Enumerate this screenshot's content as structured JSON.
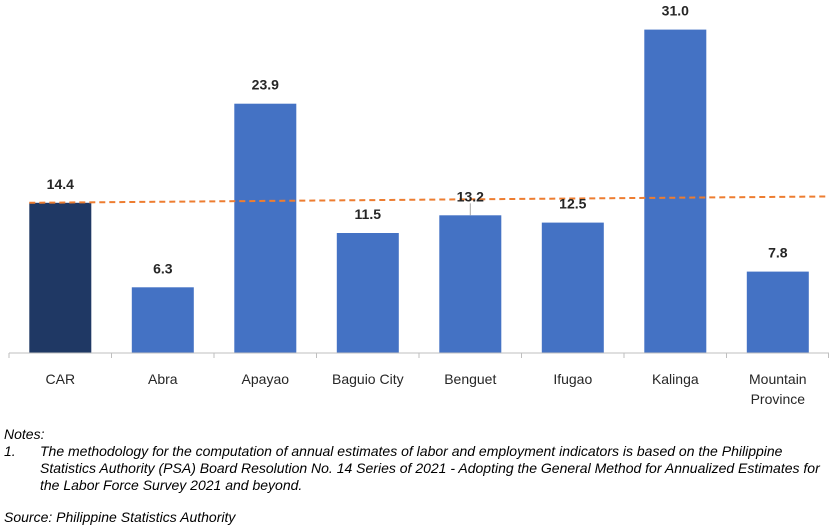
{
  "chart_data": {
    "type": "bar",
    "categories": [
      "CAR",
      "Abra",
      "Apayao",
      "Baguio City",
      "Benguet",
      "Ifugao",
      "Kalinga",
      "Mountain Province"
    ],
    "category_lines": [
      [
        "CAR"
      ],
      [
        "Abra"
      ],
      [
        "Apayao"
      ],
      [
        "Baguio City"
      ],
      [
        "Benguet"
      ],
      [
        "Ifugao"
      ],
      [
        "Kalinga"
      ],
      [
        "Mountain",
        "Province"
      ]
    ],
    "values": [
      14.4,
      6.3,
      23.9,
      11.5,
      13.2,
      12.5,
      31.0,
      7.8
    ],
    "value_labels": [
      "14.4",
      "6.3",
      "23.9",
      "11.5",
      "13.2",
      "12.5",
      "31.0",
      "7.8"
    ],
    "bar_colors": [
      "#1F3864",
      "#4472C4",
      "#4472C4",
      "#4472C4",
      "#4472C4",
      "#4472C4",
      "#4472C4",
      "#4472C4"
    ],
    "reference_line": {
      "style": "dashed",
      "color": "#ED7D31",
      "y_start": 14.4,
      "y_end": 15.0
    },
    "ylim": [
      0,
      32.5
    ],
    "title": "",
    "xlabel": "",
    "ylabel": "",
    "grid": false,
    "legend": "none"
  },
  "notes": {
    "heading": "Notes:",
    "items": [
      {
        "number": "1.",
        "text": "The methodology for the computation of annual estimates of labor and employment indicators is based on the Philippine Statistics Authority (PSA) Board Resolution No. 14 Series of 2021 - Adopting the General Method for Annualized Estimates for the Labor Force Survey 2021 and beyond."
      }
    ]
  },
  "source": "Source: Philippine Statistics Authority"
}
